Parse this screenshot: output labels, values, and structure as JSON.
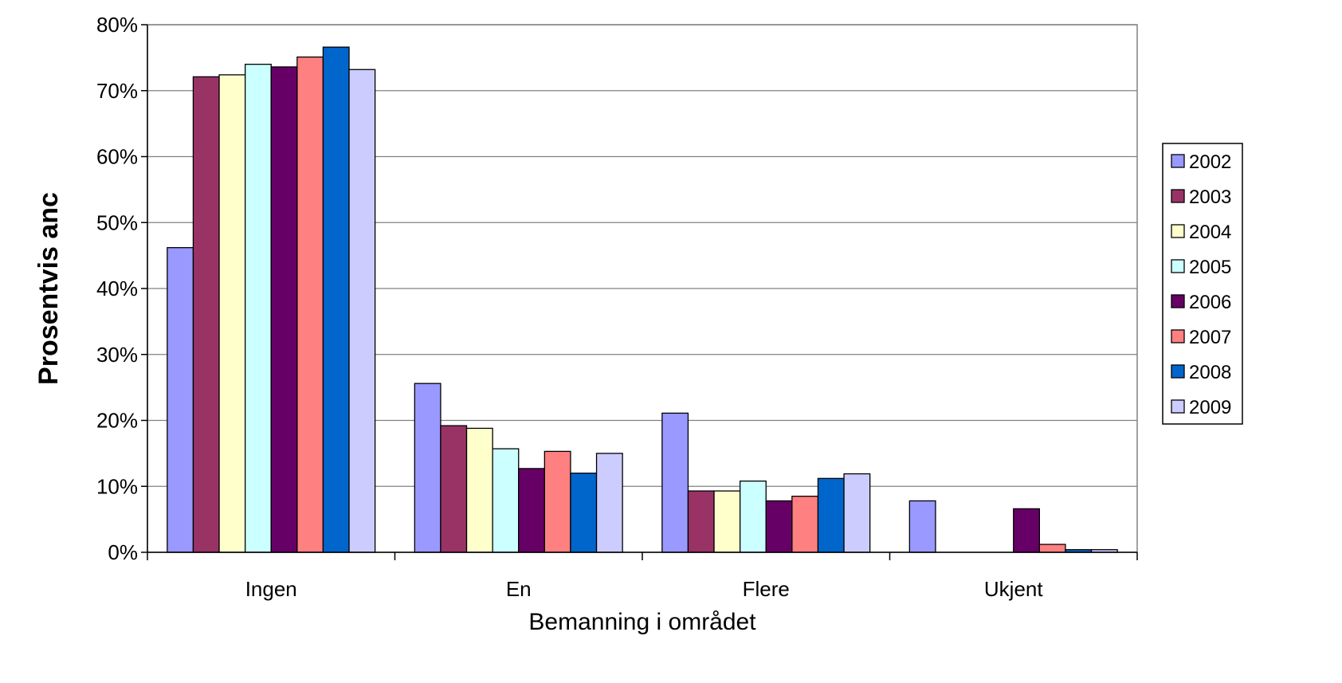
{
  "chart_data": {
    "type": "bar",
    "title": "",
    "xlabel": "Bemanning i området",
    "ylabel": "Prosentvis anc",
    "categories": [
      "Ingen",
      "En",
      "Flere",
      "Ukjent"
    ],
    "ylim": [
      0,
      80
    ],
    "yticks": [
      "0%",
      "10%",
      "20%",
      "30%",
      "40%",
      "50%",
      "60%",
      "70%",
      "80%"
    ],
    "grid": true,
    "legend_position": "right",
    "series": [
      {
        "name": "2002",
        "color": "#9999ff",
        "values": [
          46.2,
          25.6,
          21.1,
          7.8
        ]
      },
      {
        "name": "2003",
        "color": "#993366",
        "values": [
          72.1,
          19.2,
          9.3,
          0
        ]
      },
      {
        "name": "2004",
        "color": "#ffffcc",
        "values": [
          72.4,
          18.8,
          9.3,
          0
        ]
      },
      {
        "name": "2005",
        "color": "#ccffff",
        "values": [
          74.0,
          15.7,
          10.8,
          0
        ]
      },
      {
        "name": "2006",
        "color": "#660066",
        "values": [
          73.6,
          12.7,
          7.8,
          6.6
        ]
      },
      {
        "name": "2007",
        "color": "#ff8080",
        "values": [
          75.1,
          15.3,
          8.5,
          1.2
        ]
      },
      {
        "name": "2008",
        "color": "#0066cc",
        "values": [
          76.6,
          12.0,
          11.2,
          0.4
        ]
      },
      {
        "name": "2009",
        "color": "#ccccff",
        "values": [
          73.2,
          15.0,
          11.9,
          0.4
        ]
      }
    ]
  }
}
